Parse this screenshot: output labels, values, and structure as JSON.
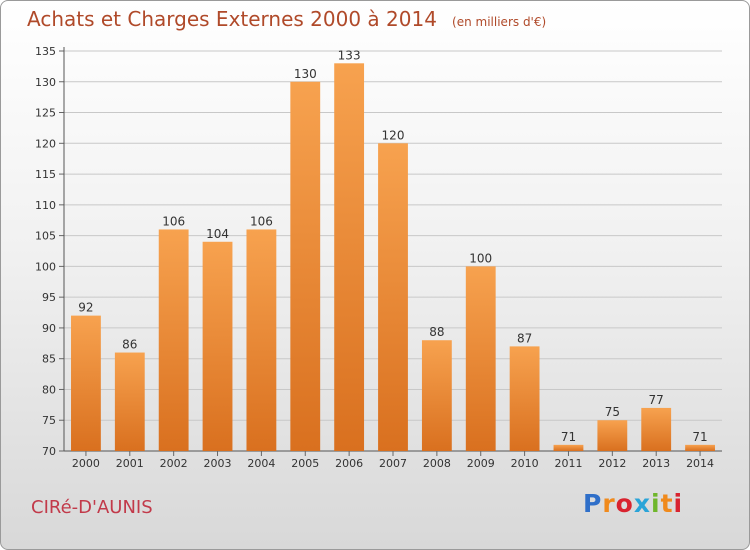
{
  "header": {
    "title": "Achats et Charges Externes 2000 à 2014",
    "subtitle": "(en milliers d'€)"
  },
  "footer": {
    "commune": "CIRé-D'AUNIS",
    "logo_text": "Proxiti"
  },
  "colors": {
    "bar_light": "#f7a24f",
    "bar_dark": "#d9701f",
    "title": "#b04a2a",
    "commune": "#c23a4a"
  },
  "chart_data": {
    "type": "bar",
    "title": "Achats et Charges Externes 2000 à 2014",
    "subtitle": "(en milliers d'€)",
    "categories": [
      "2000",
      "2001",
      "2002",
      "2003",
      "2004",
      "2005",
      "2006",
      "2007",
      "2008",
      "2009",
      "2010",
      "2011",
      "2012",
      "2013",
      "2014"
    ],
    "values": [
      92,
      86,
      106,
      104,
      106,
      130,
      133,
      120,
      88,
      100,
      87,
      71,
      75,
      77,
      71
    ],
    "ylim": [
      70,
      135
    ],
    "yticks": [
      70,
      75,
      80,
      85,
      90,
      95,
      100,
      105,
      110,
      115,
      120,
      125,
      130,
      135
    ],
    "xlabel": "",
    "ylabel": "",
    "grid": true,
    "data_labels": true
  }
}
